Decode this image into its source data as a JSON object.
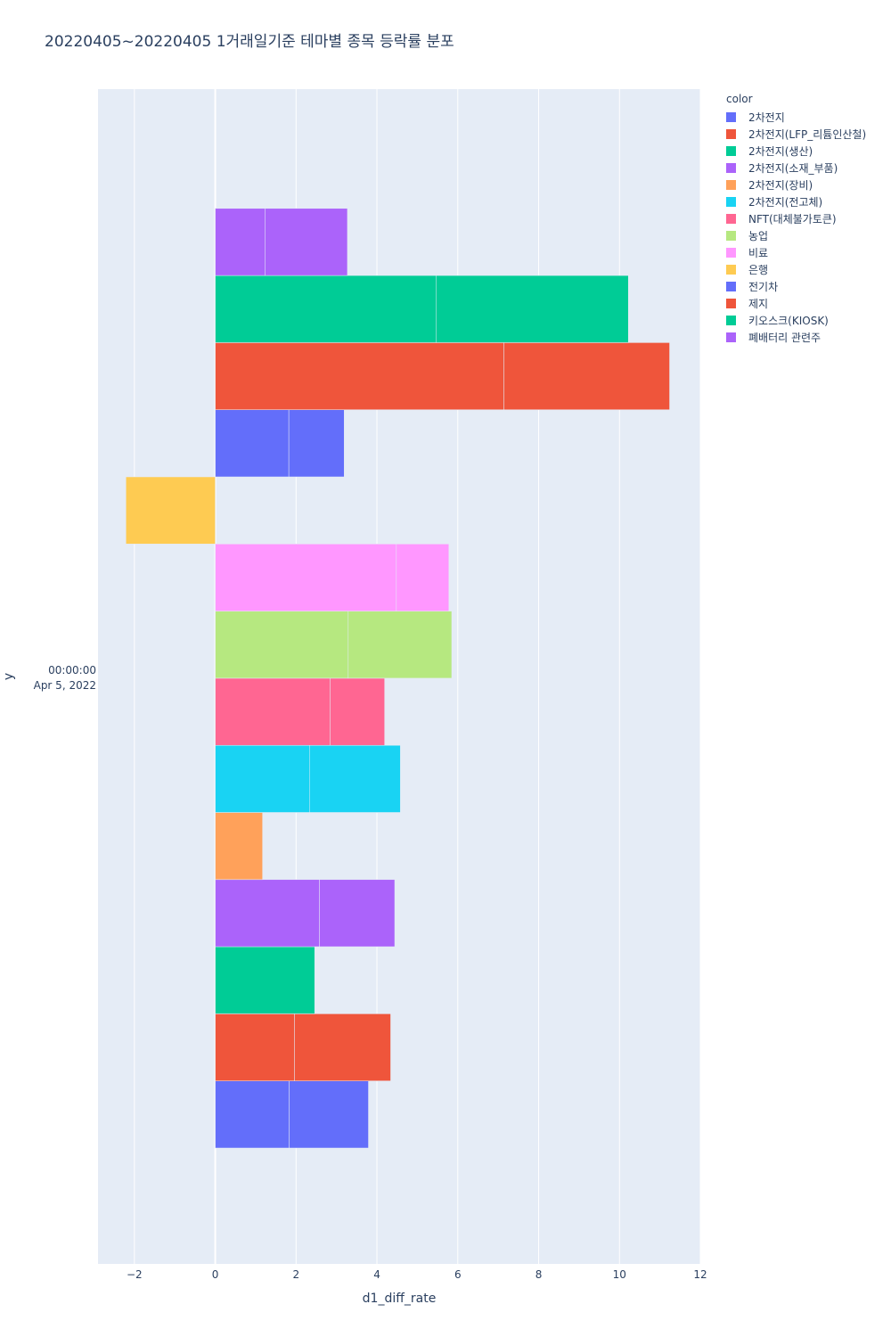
{
  "chart_data": {
    "type": "bar",
    "orientation": "horizontal",
    "barmode": "stack",
    "title": "20220405~20220405 1거래일기준 테마별 종목 등락률 분포",
    "xlabel": "d1_diff_rate",
    "ylabel": "y",
    "y_category_label": [
      "00:00:00",
      "Apr 5, 2022"
    ],
    "xlim": [
      -2.9,
      12
    ],
    "x_ticks": [
      -2,
      0,
      2,
      4,
      6,
      8,
      10,
      12
    ],
    "x_tick_labels": [
      "−2",
      "0",
      "2",
      "4",
      "6",
      "8",
      "10",
      "12"
    ],
    "grid": true,
    "legend_title": "color",
    "legend_position": "right",
    "series": [
      {
        "name": "2차전지",
        "color": "#636efa",
        "segments": [
          1.83,
          1.96
        ]
      },
      {
        "name": "2차전지(LFP_리튬인산철)",
        "color": "#EF553B",
        "segments": [
          1.96,
          2.38
        ]
      },
      {
        "name": "2차전지(생산)",
        "color": "#00cc96",
        "segments": [
          2.46
        ]
      },
      {
        "name": "2차전지(소재_부품)",
        "color": "#ab63fa",
        "segments": [
          2.58,
          1.86
        ]
      },
      {
        "name": "2차전지(장비)",
        "color": "#FFA15A",
        "segments": [
          1.17
        ]
      },
      {
        "name": "2차전지(전고체)",
        "color": "#19d3f3",
        "segments": [
          2.33,
          2.25
        ]
      },
      {
        "name": "NFT(대체불가토큰)",
        "color": "#FF6692",
        "segments": [
          2.84,
          1.35
        ]
      },
      {
        "name": "농업",
        "color": "#B6E880",
        "segments": [
          3.29,
          2.56
        ]
      },
      {
        "name": "비료",
        "color": "#FF97FF",
        "segments": [
          4.48,
          1.3
        ]
      },
      {
        "name": "은행",
        "color": "#FECB52",
        "segments": [
          -2.21
        ]
      },
      {
        "name": "전기차",
        "color": "#636efa",
        "segments": [
          1.82,
          1.37
        ]
      },
      {
        "name": "제지",
        "color": "#EF553B",
        "segments": [
          7.14,
          4.1
        ]
      },
      {
        "name": "키오스크(KIOSK)",
        "color": "#00cc96",
        "segments": [
          5.46,
          4.76
        ]
      },
      {
        "name": "폐배터리 관련주",
        "color": "#ab63fa",
        "segments": [
          1.23,
          2.04
        ]
      }
    ]
  }
}
